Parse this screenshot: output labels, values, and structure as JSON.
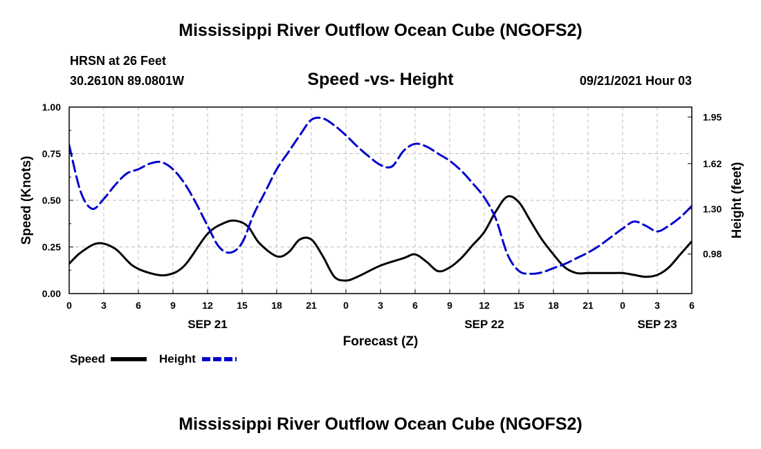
{
  "page": {
    "title_top": "Mississippi River Outflow Ocean Cube (NGOFS2)",
    "title_bottom": "Mississippi River Outflow Ocean Cube (NGOFS2)",
    "station": "HRSN at 26 Feet",
    "coords": "30.2610N  89.0801W",
    "date": "09/21/2021 Hour 03"
  },
  "legend": {
    "speed_label": "Speed",
    "height_label": "Height"
  },
  "colors": {
    "speed": "#000000",
    "height": "#0000cc",
    "grid": "#bbbbbb"
  },
  "chart_data": {
    "type": "line",
    "title": "Speed -vs- Height",
    "xlabel": "Forecast (Z)",
    "ylabel": "Speed (Knots)",
    "y2label": "Height (feet)",
    "xlim": [
      0,
      54
    ],
    "ylim": [
      0,
      1
    ],
    "y2lim": [
      0.7,
      2.02
    ],
    "x_ticks": [
      0,
      3,
      6,
      9,
      12,
      15,
      18,
      21,
      24,
      27,
      30,
      33,
      36,
      39,
      42,
      45,
      48,
      51,
      54
    ],
    "x_tick_labels": [
      "0",
      "3",
      "6",
      "9",
      "12",
      "15",
      "18",
      "21",
      "0",
      "3",
      "6",
      "9",
      "12",
      "15",
      "18",
      "21",
      "0",
      "3",
      "6"
    ],
    "date_labels": [
      {
        "x": 12,
        "text": "SEP 21"
      },
      {
        "x": 36,
        "text": "SEP 22"
      },
      {
        "x": 51,
        "text": "SEP 23"
      }
    ],
    "y_ticks": [
      0,
      0.25,
      0.5,
      0.75,
      1
    ],
    "y_tick_labels": [
      "0.00",
      "0.25",
      "0.50",
      "0.75",
      "1.00"
    ],
    "y2_ticks": [
      0.98,
      1.3,
      1.62,
      1.95
    ],
    "y2_tick_labels": [
      "0.98",
      "1.30",
      "1.62",
      "1.95"
    ],
    "series": [
      {
        "name": "Speed",
        "axis": "left",
        "style": "solid",
        "x": [
          0,
          1,
          2.5,
          4,
          5.5,
          7,
          8.5,
          10,
          12,
          13.5,
          14.5,
          15.5,
          16.5,
          18,
          19,
          20,
          21,
          22,
          23,
          24,
          25,
          27,
          29,
          30,
          31,
          32,
          33,
          34,
          35,
          36,
          37,
          38,
          39,
          40,
          41,
          42,
          43,
          44,
          45,
          46,
          47,
          48,
          49,
          50,
          51,
          52,
          53,
          54
        ],
        "values": [
          0.16,
          0.22,
          0.27,
          0.24,
          0.15,
          0.11,
          0.1,
          0.15,
          0.32,
          0.38,
          0.39,
          0.36,
          0.27,
          0.2,
          0.22,
          0.29,
          0.29,
          0.2,
          0.09,
          0.07,
          0.09,
          0.15,
          0.19,
          0.21,
          0.17,
          0.12,
          0.14,
          0.19,
          0.26,
          0.33,
          0.44,
          0.52,
          0.49,
          0.39,
          0.29,
          0.21,
          0.14,
          0.11,
          0.11,
          0.11,
          0.11,
          0.11,
          0.1,
          0.09,
          0.1,
          0.14,
          0.21,
          0.28
        ]
      },
      {
        "name": "Height",
        "axis": "right",
        "style": "dashed",
        "x": [
          0,
          1,
          2,
          3,
          4,
          5,
          6,
          7,
          8,
          9,
          10,
          11,
          12,
          13,
          14,
          15,
          16,
          17,
          18,
          19,
          20,
          21,
          22,
          23,
          24,
          25,
          26,
          27,
          28,
          29,
          30,
          31,
          32,
          33,
          34,
          35,
          36,
          37,
          38,
          39,
          40,
          41,
          42,
          43,
          44,
          45,
          46,
          47,
          48,
          49,
          50,
          51,
          52,
          53,
          54
        ],
        "values": [
          1.75,
          1.42,
          1.3,
          1.37,
          1.47,
          1.55,
          1.58,
          1.62,
          1.63,
          1.58,
          1.48,
          1.34,
          1.18,
          1.03,
          0.99,
          1.06,
          1.26,
          1.42,
          1.58,
          1.7,
          1.82,
          1.93,
          1.94,
          1.89,
          1.82,
          1.74,
          1.67,
          1.61,
          1.6,
          1.71,
          1.76,
          1.74,
          1.69,
          1.64,
          1.57,
          1.48,
          1.38,
          1.23,
          0.98,
          0.86,
          0.84,
          0.85,
          0.88,
          0.91,
          0.95,
          0.99,
          1.04,
          1.1,
          1.16,
          1.21,
          1.18,
          1.14,
          1.18,
          1.24,
          1.32
        ]
      }
    ]
  }
}
